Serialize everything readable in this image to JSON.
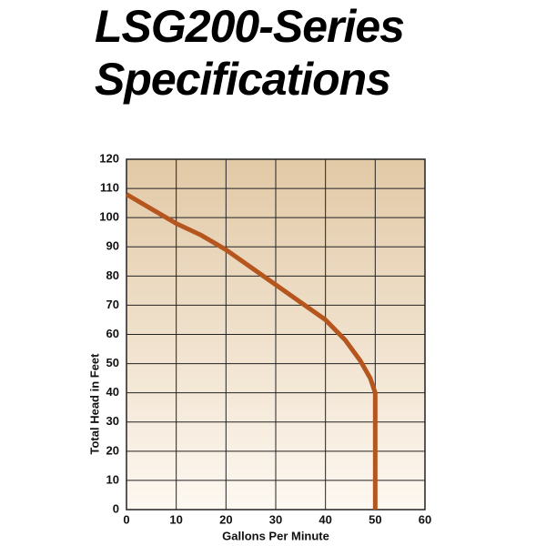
{
  "chart_data": {
    "type": "line",
    "title": "LSG200-Series Specifications",
    "x_label": "Gallons Per Minute",
    "y_label": "Total Head in Feet",
    "x": [
      0,
      5,
      10,
      15,
      20,
      25,
      30,
      35,
      40,
      44,
      47,
      49,
      50,
      50
    ],
    "series": [
      {
        "name": "LSG200",
        "color": "#b5561f",
        "values": [
          108,
          103,
          98,
          94,
          89,
          83,
          77,
          71,
          65,
          58,
          51,
          45,
          40,
          0
        ]
      }
    ],
    "xlim": [
      0,
      60
    ],
    "xticks": [
      0,
      10,
      20,
      30,
      40,
      50,
      60
    ],
    "ylim": [
      0,
      120
    ],
    "yticks": [
      0,
      10,
      20,
      30,
      40,
      50,
      60,
      70,
      80,
      90,
      100,
      110,
      120
    ],
    "grid": true
  }
}
